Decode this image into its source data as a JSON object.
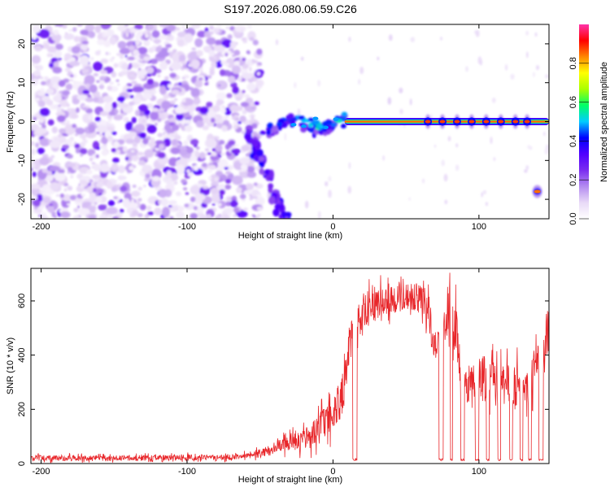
{
  "title": "S197.2026.080.06.59.C26",
  "chart_data": [
    {
      "type": "heatmap",
      "xlabel": "Height of straight line (km)",
      "ylabel": "Frequency (Hz)",
      "xlim": [
        -207,
        148
      ],
      "ylim": [
        -25,
        25
      ],
      "xticks": [
        -200,
        -100,
        0,
        100
      ],
      "yticks": [
        -20,
        -10,
        0,
        10,
        20
      ],
      "colorbar": {
        "label": "Normalized spectral amplitude",
        "range": [
          0,
          1
        ],
        "ticks": [
          "0.0",
          "0.2",
          "0.4",
          "0.6",
          "0.8"
        ],
        "tick_values": [
          0,
          0.2,
          0.4,
          0.6,
          0.8
        ],
        "colormap": [
          "#ffffff",
          "#e8d9f7",
          "#b48cf0",
          "#7a2cf0",
          "#5000ff",
          "#0000ff",
          "#00ccff",
          "#00ff66",
          "#aaff00",
          "#ffff00",
          "#ff8800",
          "#ff0000",
          "#ff33aa"
        ]
      },
      "features": {
        "noise_region_x": [
          -207,
          -58
        ],
        "tone_segment": {
          "x": [
            8,
            148
          ],
          "y": 0,
          "amplitude": 0.85
        },
        "tone_pulses_x": [
          65,
          75,
          85,
          95,
          105,
          115,
          125,
          133
        ],
        "descending_streak": {
          "x": [
            -58,
            -32
          ],
          "y": [
            -2,
            -25
          ]
        },
        "side_blob": {
          "x": 140,
          "y": -18,
          "amplitude": 0.85
        }
      }
    },
    {
      "type": "line",
      "xlabel": "Height of straight line (km)",
      "ylabel": "SNR (10 * v/v)",
      "xlim": [
        -207,
        148
      ],
      "ylim": [
        0,
        720
      ],
      "xticks": [
        -200,
        -100,
        0,
        100
      ],
      "yticks": [
        0,
        200,
        400,
        600
      ],
      "series": [
        {
          "color": "#e8262a",
          "envelope": [
            [
              -207,
              20,
              18
            ],
            [
              -150,
              20,
              18
            ],
            [
              -80,
              22,
              20
            ],
            [
              -60,
              28,
              20
            ],
            [
              -45,
              45,
              35
            ],
            [
              -35,
              70,
              50
            ],
            [
              -25,
              80,
              60
            ],
            [
              -15,
              100,
              80
            ],
            [
              -5,
              150,
              120
            ],
            [
              3,
              200,
              150
            ],
            [
              8,
              300,
              150
            ],
            [
              12,
              450,
              180
            ],
            [
              16,
              520,
              140
            ],
            [
              22,
              560,
              120
            ],
            [
              30,
              590,
              100
            ],
            [
              40,
              610,
              100
            ],
            [
              50,
              615,
              100
            ],
            [
              60,
              610,
              100
            ],
            [
              65,
              590,
              120
            ],
            [
              68,
              500,
              160
            ],
            [
              72,
              450,
              150
            ],
            [
              78,
              560,
              180
            ],
            [
              84,
              520,
              200
            ],
            [
              88,
              300,
              140
            ],
            [
              95,
              280,
              140
            ],
            [
              105,
              320,
              150
            ],
            [
              115,
              300,
              130
            ],
            [
              125,
              290,
              140
            ],
            [
              135,
              300,
              140
            ],
            [
              142,
              420,
              150
            ],
            [
              148,
              500,
              160
            ]
          ],
          "dropouts": [
            [
              13.5,
              16.5
            ],
            [
              72.5,
              75.5
            ],
            [
              80.5,
              82
            ],
            [
              87.5,
              90
            ],
            [
              97.5,
              100
            ],
            [
              105,
              107
            ],
            [
              113,
              115
            ],
            [
              121,
              123
            ],
            [
              128,
              130
            ],
            [
              134,
              136
            ],
            [
              141,
              144
            ]
          ]
        }
      ]
    }
  ]
}
